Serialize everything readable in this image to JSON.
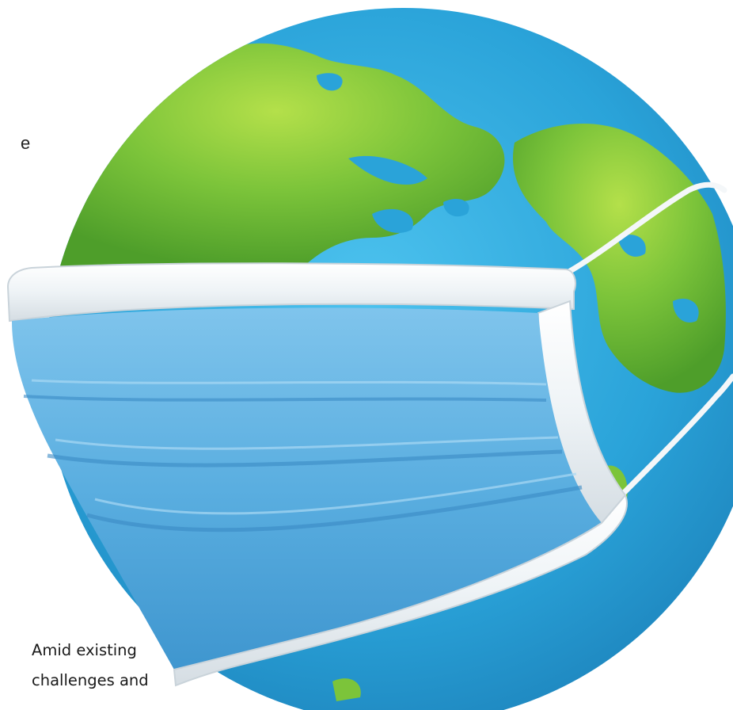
{
  "figure": {
    "subject": "globe-with-face-mask",
    "icon": "globe-mask-icon",
    "colors": {
      "ocean": "#2aa3d9",
      "land": "#7cc43a",
      "mask": "#5aaee0",
      "mask_trim": "#eef3f6"
    }
  },
  "side_text": {
    "fragment": "e"
  },
  "caption": {
    "line1": "Amid existing",
    "line2": "challenges and"
  }
}
